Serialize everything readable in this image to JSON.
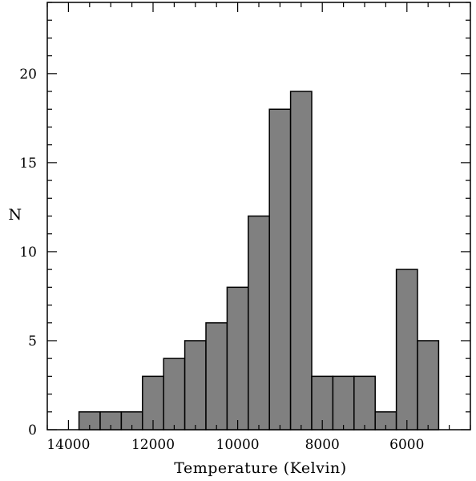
{
  "chart_data": {
    "type": "bar",
    "histogram": true,
    "title": "",
    "xlabel": "Temperature (Kelvin)",
    "ylabel": "N",
    "x_reversed": true,
    "xlim": [
      14500,
      4500
    ],
    "ylim": [
      0,
      24
    ],
    "xticks": [
      14000,
      12000,
      10000,
      8000,
      6000
    ],
    "xtick_labels": [
      "14000",
      "12000",
      "10000",
      "8000",
      "6000"
    ],
    "yticks": [
      0,
      5,
      10,
      15,
      20
    ],
    "ytick_labels": [
      "0",
      "5",
      "10",
      "15",
      "20"
    ],
    "bin_edges": [
      13750,
      13250,
      12750,
      12250,
      11750,
      11250,
      10750,
      10250,
      9750,
      9250,
      8750,
      8250,
      7750,
      7250,
      6750,
      6250,
      5750,
      5250
    ],
    "values": [
      1,
      1,
      1,
      3,
      4,
      5,
      6,
      8,
      12,
      18,
      19,
      3,
      3,
      3,
      1,
      9,
      5
    ],
    "grid": false,
    "fill_color": "#808080",
    "edge_color": "#000000"
  }
}
